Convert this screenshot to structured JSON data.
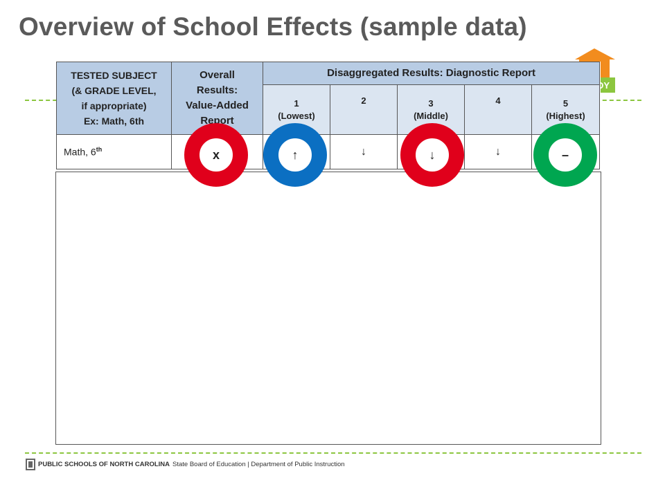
{
  "slide": {
    "title": "Overview of School Effects (sample data)"
  },
  "table": {
    "header_subject": [
      "TESTED SUBJECT",
      "(& GRADE LEVEL,",
      "if appropriate)",
      "Ex:  Math, 6th"
    ],
    "header_overall": [
      "Overall",
      "Results:",
      "Value-Added",
      "Report"
    ],
    "header_disagg": "Disaggregated Results:  Diagnostic Report",
    "columns": [
      {
        "number": "1",
        "label": "(Lowest)"
      },
      {
        "number": "2",
        "label": ""
      },
      {
        "number": "3",
        "label": "(Middle)"
      },
      {
        "number": "4",
        "label": ""
      },
      {
        "number": "5",
        "label": "(Highest)"
      }
    ],
    "row": {
      "subject": "Math, 6",
      "subject_sup": "th",
      "overall": "x",
      "values": [
        "↑",
        "↓",
        "↓",
        "↓",
        "–"
      ]
    }
  },
  "highlights": [
    {
      "target": "overall",
      "color": "#e0001b",
      "symbol": "x"
    },
    {
      "target": "col-1",
      "color": "#0b6fc2",
      "symbol": "↑"
    },
    {
      "target": "col-3",
      "color": "#e0001b",
      "symbol": "↓"
    },
    {
      "target": "col-5",
      "color": "#00a650",
      "symbol": "–"
    }
  ],
  "logo": {
    "text": "DY",
    "colors": {
      "house": "#f28c1e",
      "badge": "#8cc63f"
    }
  },
  "footer": {
    "org": "PUBLIC SCHOOLS OF NORTH CAROLINA",
    "rest": "State Board of Education | Department of Public Instruction"
  },
  "colors": {
    "title": "#5a5a5a",
    "header_fill": "#b8cce4",
    "subheader_fill": "#dbe5f1",
    "dash": "#8cc63f"
  }
}
